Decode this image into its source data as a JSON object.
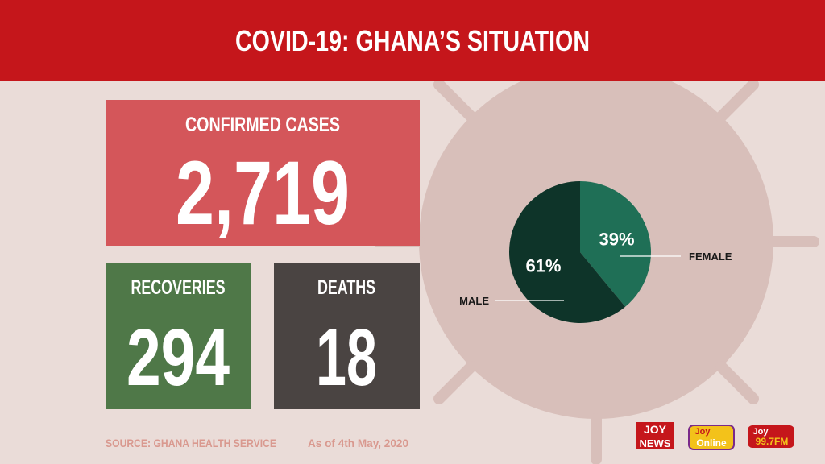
{
  "header": {
    "title": "COVID-19: GHANA’S SITUATION"
  },
  "cards": [
    {
      "label": "CONFIRMED CASES",
      "value": "2,719"
    },
    {
      "label": "RECOVERIES",
      "value": "294"
    },
    {
      "label": "DEATHS",
      "value": "18"
    }
  ],
  "chart_data": {
    "type": "pie",
    "categories": [
      "FEMALE",
      "MALE"
    ],
    "values": [
      39,
      61
    ],
    "value_labels": [
      "39%",
      "61%"
    ],
    "colors": [
      "#1f6f56",
      "#0e3429"
    ]
  },
  "footer": {
    "source": "SOURCE: GHANA HEALTH SERVICE",
    "date": "As of 4th May, 2020"
  },
  "logos": [
    {
      "top": "JOY",
      "bottom": "NEWS"
    },
    {
      "top": "Joy",
      "bottom": "Online"
    },
    {
      "top": "Joy",
      "bottom": "99.7FM"
    }
  ]
}
